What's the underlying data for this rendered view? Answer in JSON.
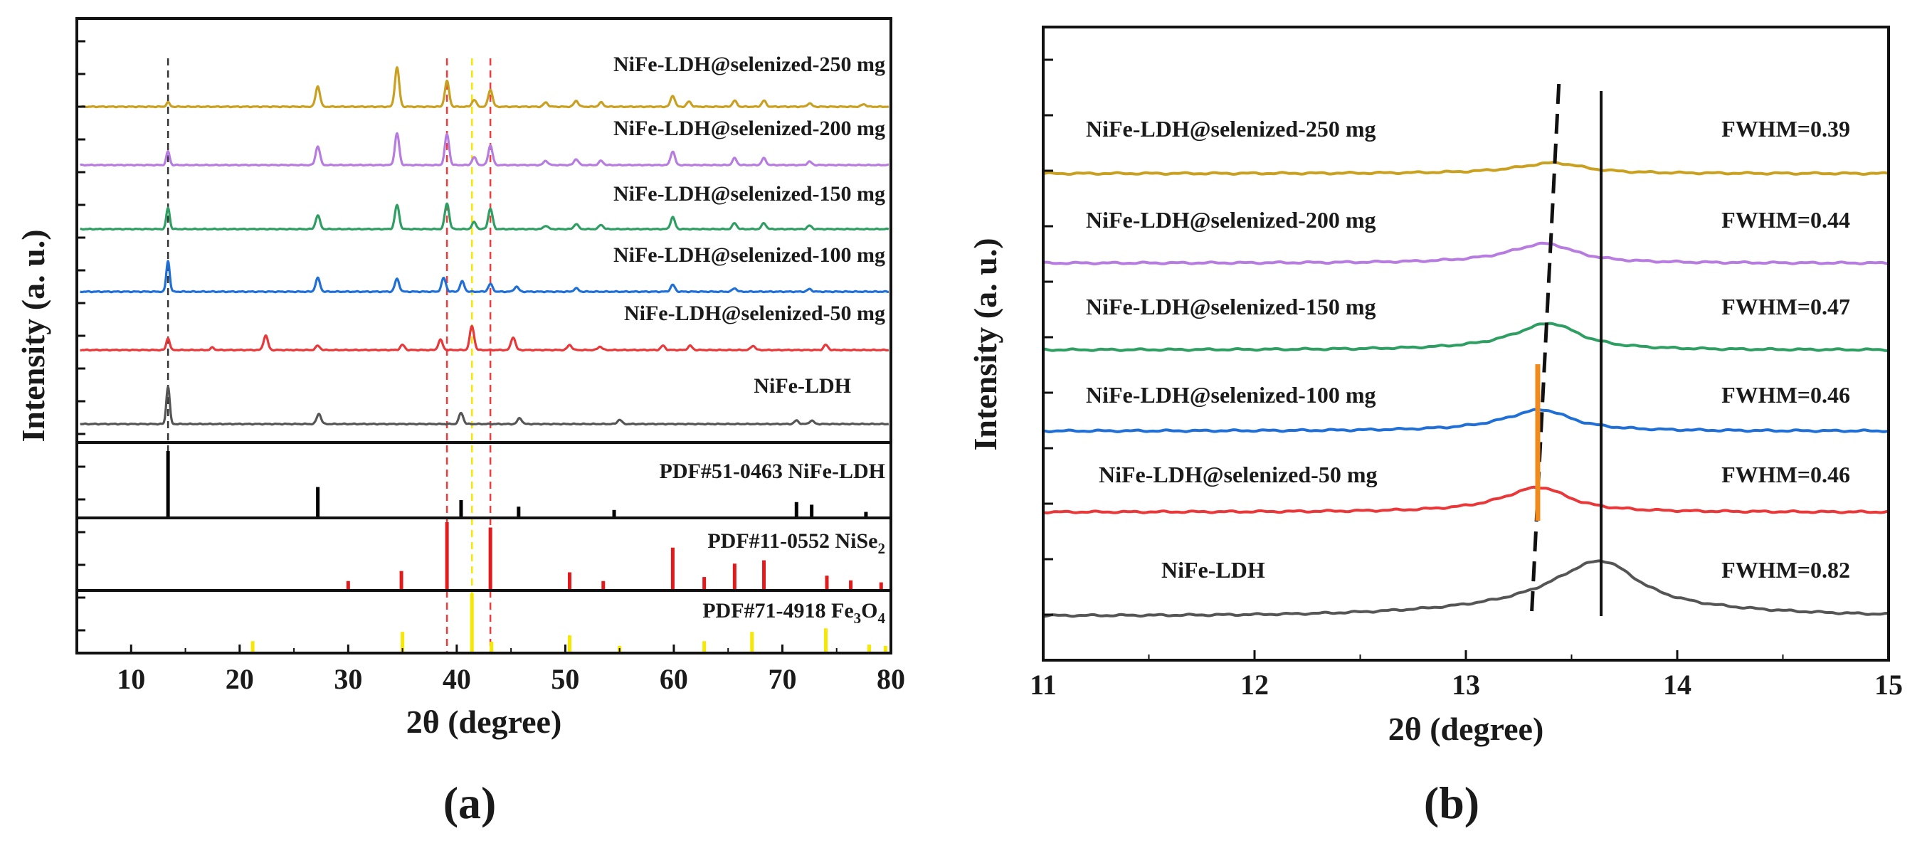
{
  "chart_data": [
    {
      "panel": "a",
      "type": "line",
      "caption": "(a)",
      "xlabel": "2θ (degree)",
      "ylabel": "Intensity (a. u.)",
      "xlim": [
        5,
        80
      ],
      "xticks": [
        10,
        20,
        30,
        40,
        50,
        60,
        70,
        80
      ],
      "series": [
        {
          "name": "NiFe-LDH@selenized-250 mg",
          "color": "#c9a020",
          "peaks": [
            [
              13.4,
              0.5
            ],
            [
              27.2,
              2.4
            ],
            [
              34.5,
              4.6
            ],
            [
              39.1,
              3.0
            ],
            [
              41.6,
              0.8
            ],
            [
              43.1,
              2.0
            ],
            [
              48.2,
              0.5
            ],
            [
              51.0,
              0.7
            ],
            [
              53.3,
              0.5
            ],
            [
              59.9,
              1.3
            ],
            [
              61.4,
              0.6
            ],
            [
              65.6,
              0.7
            ],
            [
              68.3,
              0.7
            ],
            [
              72.5,
              0.4
            ],
            [
              77.5,
              0.3
            ]
          ]
        },
        {
          "name": "NiFe-LDH@selenized-200 mg",
          "color": "#b77ce0",
          "peaks": [
            [
              13.4,
              1.6
            ],
            [
              27.2,
              2.2
            ],
            [
              34.5,
              3.7
            ],
            [
              39.1,
              3.6
            ],
            [
              41.6,
              0.9
            ],
            [
              43.1,
              2.3
            ],
            [
              48.2,
              0.5
            ],
            [
              51.0,
              0.7
            ],
            [
              53.3,
              0.5
            ],
            [
              59.9,
              1.6
            ],
            [
              65.6,
              0.8
            ],
            [
              68.3,
              0.8
            ],
            [
              72.5,
              0.4
            ]
          ]
        },
        {
          "name": "NiFe-LDH@selenized-150 mg",
          "color": "#2e9e63",
          "peaks": [
            [
              13.4,
              2.5
            ],
            [
              27.2,
              1.6
            ],
            [
              34.5,
              2.8
            ],
            [
              39.1,
              3.0
            ],
            [
              41.6,
              0.8
            ],
            [
              43.1,
              2.4
            ],
            [
              48.2,
              0.4
            ],
            [
              51.0,
              0.6
            ],
            [
              53.3,
              0.5
            ],
            [
              59.9,
              1.4
            ],
            [
              65.6,
              0.7
            ],
            [
              68.3,
              0.7
            ],
            [
              72.5,
              0.4
            ]
          ]
        },
        {
          "name": "NiFe-LDH@selenized-100 mg",
          "color": "#1f6fd6",
          "peaks": [
            [
              13.4,
              3.6
            ],
            [
              27.2,
              1.6
            ],
            [
              34.5,
              1.5
            ],
            [
              38.8,
              1.6
            ],
            [
              40.5,
              1.2
            ],
            [
              43.1,
              0.9
            ],
            [
              45.5,
              0.6
            ],
            [
              51.0,
              0.4
            ],
            [
              59.9,
              0.8
            ],
            [
              65.6,
              0.4
            ],
            [
              72.5,
              0.3
            ]
          ]
        },
        {
          "name": "NiFe-LDH@selenized-50 mg",
          "color": "#e8383a",
          "peaks": [
            [
              13.4,
              1.4
            ],
            [
              17.5,
              0.3
            ],
            [
              22.4,
              1.7
            ],
            [
              27.2,
              0.5
            ],
            [
              35.0,
              0.6
            ],
            [
              38.5,
              1.2
            ],
            [
              41.4,
              2.8
            ],
            [
              45.2,
              1.5
            ],
            [
              50.4,
              0.6
            ],
            [
              53.2,
              0.4
            ],
            [
              59.0,
              0.5
            ],
            [
              61.5,
              0.5
            ],
            [
              67.3,
              0.5
            ],
            [
              74.0,
              0.6
            ]
          ]
        },
        {
          "name": "NiFe-LDH",
          "color": "#555555",
          "peaks": [
            [
              13.4,
              4.4
            ],
            [
              27.3,
              1.2
            ],
            [
              40.4,
              1.3
            ],
            [
              45.8,
              0.7
            ],
            [
              55.0,
              0.5
            ],
            [
              71.3,
              0.4
            ],
            [
              72.7,
              0.4
            ]
          ]
        }
      ],
      "references": [
        {
          "label": "PDF#51-0463 NiFe-LDH",
          "label_main": "PDF#51-0463 NiFe-LDH",
          "color": "#000000",
          "lines": [
            [
              13.4,
              1.0
            ],
            [
              27.2,
              0.45
            ],
            [
              40.4,
              0.25
            ],
            [
              45.7,
              0.15
            ],
            [
              54.5,
              0.1
            ],
            [
              71.3,
              0.22
            ],
            [
              72.7,
              0.18
            ],
            [
              77.7,
              0.07
            ]
          ]
        },
        {
          "label": "PDF#11-0552 NiSe2",
          "label_main": "PDF#11-0552 NiSe",
          "label_sub": "2",
          "color": "#e11b1b",
          "lines": [
            [
              30.0,
              0.12
            ],
            [
              34.9,
              0.27
            ],
            [
              39.1,
              1.0
            ],
            [
              43.1,
              0.92
            ],
            [
              50.4,
              0.25
            ],
            [
              53.5,
              0.12
            ],
            [
              59.9,
              0.62
            ],
            [
              62.8,
              0.18
            ],
            [
              65.6,
              0.38
            ],
            [
              68.3,
              0.43
            ],
            [
              74.1,
              0.2
            ],
            [
              76.3,
              0.13
            ],
            [
              79.1,
              0.1
            ]
          ]
        },
        {
          "label": "PDF#71-4918 Fe3O4",
          "label_main": "PDF#71-4918 Fe",
          "label_sub": "3",
          "label_main2": "O",
          "label_sub2": "4",
          "color": "#f6e800",
          "lines": [
            [
              21.2,
              0.18
            ],
            [
              35.0,
              0.34
            ],
            [
              41.4,
              1.0
            ],
            [
              43.2,
              0.17
            ],
            [
              50.4,
              0.28
            ],
            [
              55.0,
              0.1
            ],
            [
              62.8,
              0.18
            ],
            [
              67.2,
              0.34
            ],
            [
              74.0,
              0.4
            ],
            [
              78.0,
              0.12
            ],
            [
              79.5,
              0.1
            ]
          ]
        }
      ],
      "guide_lines": [
        {
          "x": 13.4,
          "color": "#333333"
        },
        {
          "x": 39.1,
          "color": "#ef3b3b"
        },
        {
          "x": 41.4,
          "color": "#f6e800"
        },
        {
          "x": 43.1,
          "color": "#ef3b3b"
        }
      ]
    },
    {
      "panel": "b",
      "type": "line",
      "caption": "(b)",
      "xlabel": "2θ (degree)",
      "ylabel": "Intensity (a. u.)",
      "xlim": [
        11,
        15
      ],
      "xticks": [
        11,
        12,
        13,
        14,
        15
      ],
      "series": [
        {
          "name": "NiFe-LDH@selenized-250 mg",
          "color": "#c9a020",
          "peak_x": 13.42,
          "fwhm_label": "FWHM=0.39",
          "height": 0.3
        },
        {
          "name": "NiFe-LDH@selenized-200 mg",
          "color": "#b77ce0",
          "peak_x": 13.38,
          "fwhm_label": "FWHM=0.44",
          "height": 0.55
        },
        {
          "name": "NiFe-LDH@selenized-150 mg",
          "color": "#2e9e63",
          "peak_x": 13.4,
          "fwhm_label": "FWHM=0.47",
          "height": 0.75
        },
        {
          "name": "NiFe-LDH@selenized-100 mg",
          "color": "#1f6fd6",
          "peak_x": 13.36,
          "fwhm_label": "FWHM=0.46",
          "height": 0.6
        },
        {
          "name": "NiFe-LDH@selenized-50 mg",
          "color": "#e8383a",
          "peak_x": 13.35,
          "fwhm_label": "FWHM=0.46",
          "height": 0.7
        },
        {
          "name": "NiFe-LDH",
          "color": "#555555",
          "peak_x": 13.64,
          "fwhm_label": "FWHM=0.82",
          "height": 1.35
        }
      ],
      "guide_lines": [
        {
          "x_top": 13.44,
          "x_bottom": 13.31,
          "style": "dashed",
          "color": "#111111"
        },
        {
          "x_top": 13.64,
          "x_bottom": 13.64,
          "style": "solid",
          "color": "#111111"
        },
        {
          "x_top": 13.34,
          "x_bottom": 13.34,
          "style": "solid",
          "color": "#f08a1c"
        }
      ]
    }
  ]
}
